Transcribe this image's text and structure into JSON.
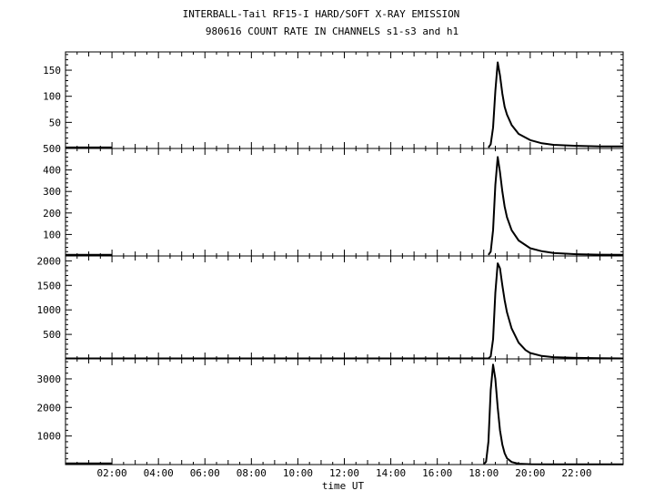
{
  "title": "INTERBALL-Tail RF15-I HARD/SOFT X-RAY EMISSION",
  "subtitle": "980616  COUNT RATE IN CHANNELS s1-s3 and h1",
  "xlabel": "time UT",
  "x_ticks": [
    "02:00",
    "04:00",
    "06:00",
    "08:00",
    "10:00",
    "12:00",
    "14:00",
    "16:00",
    "18:00",
    "20:00",
    "22:00"
  ],
  "chart_data": {
    "type": "line",
    "title": "INTERBALL-Tail RF15-I HARD/SOFT X-RAY EMISSION",
    "subtitle": "980616  COUNT RATE IN CHANNELS s1-s3 and h1",
    "xlabel": "time UT",
    "xlim": [
      0,
      24
    ],
    "x_unit": "hours UT",
    "grid": false,
    "panels": [
      {
        "ylim": [
          0,
          185
        ],
        "yticks": [
          50,
          100,
          150
        ],
        "ytick_labels": [
          "50",
          "100",
          "150"
        ],
        "data_gaps": [
          [
            2.0,
            18.2
          ]
        ],
        "x": [
          0.0,
          1.0,
          2.0,
          18.2,
          18.3,
          18.4,
          18.5,
          18.6,
          18.7,
          18.8,
          18.9,
          19.0,
          19.2,
          19.5,
          20.0,
          20.5,
          21.0,
          22.0,
          23.0,
          24.0
        ],
        "values": [
          2,
          2,
          2,
          2,
          8,
          40,
          110,
          165,
          140,
          105,
          80,
          65,
          45,
          28,
          16,
          10,
          7,
          5,
          4,
          4
        ]
      },
      {
        "ylim": [
          0,
          500
        ],
        "yticks": [
          100,
          200,
          300,
          400,
          500
        ],
        "ytick_labels": [
          "100",
          "200",
          "300",
          "400",
          "500"
        ],
        "data_gaps": [
          [
            2.0,
            18.2
          ]
        ],
        "x": [
          0.0,
          1.0,
          2.0,
          18.2,
          18.3,
          18.4,
          18.5,
          18.6,
          18.7,
          18.8,
          18.9,
          19.0,
          19.2,
          19.5,
          20.0,
          20.5,
          21.0,
          22.0,
          23.0,
          24.0
        ],
        "values": [
          5,
          5,
          5,
          5,
          20,
          120,
          330,
          460,
          390,
          300,
          230,
          180,
          120,
          72,
          36,
          22,
          14,
          8,
          6,
          5
        ]
      },
      {
        "ylim": [
          0,
          2100
        ],
        "yticks": [
          500,
          1000,
          1500,
          2000
        ],
        "ytick_labels": [
          "500",
          "1000",
          "1500",
          "2000"
        ],
        "data_gaps": [],
        "x": [
          0.0,
          18.0,
          18.2,
          18.3,
          18.4,
          18.5,
          18.6,
          18.7,
          18.8,
          18.9,
          19.0,
          19.2,
          19.5,
          19.8,
          20.0,
          20.5,
          21.0,
          22.0,
          23.0,
          24.0
        ],
        "values": [
          10,
          10,
          10,
          50,
          400,
          1350,
          1950,
          1850,
          1500,
          1200,
          950,
          620,
          330,
          180,
          120,
          60,
          35,
          20,
          15,
          10
        ]
      },
      {
        "ylim": [
          0,
          3700
        ],
        "yticks": [
          1000,
          2000,
          3000
        ],
        "ytick_labels": [
          "1000",
          "2000",
          "3000"
        ],
        "data_gaps": [
          [
            2.0,
            18.0
          ]
        ],
        "x": [
          0.0,
          1.0,
          2.0,
          18.0,
          18.1,
          18.2,
          18.3,
          18.4,
          18.5,
          18.6,
          18.7,
          18.8,
          18.9,
          19.0,
          19.2,
          19.5,
          20.0,
          21.0,
          22.0,
          24.0
        ],
        "values": [
          40,
          40,
          40,
          20,
          100,
          800,
          2600,
          3500,
          3000,
          2000,
          1200,
          700,
          400,
          220,
          90,
          30,
          12,
          8,
          6,
          5
        ]
      }
    ]
  }
}
